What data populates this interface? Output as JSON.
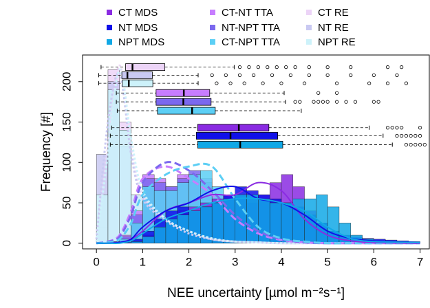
{
  "chart_data": {
    "type": "histogram",
    "xlabel": "NEE uncertainty [µmol m⁻²s⁻¹]",
    "ylabel": "Frequency [#]",
    "xlim": [
      -0.3,
      7.2
    ],
    "ylim": [
      -7,
      233
    ],
    "xticks": [
      0,
      1,
      2,
      3,
      4,
      5,
      6,
      7
    ],
    "yticks": [
      0,
      50,
      100,
      150,
      200
    ],
    "bins": [
      0,
      0.25,
      0.5,
      0.75,
      1,
      1.25,
      1.5,
      1.75,
      2,
      2.25,
      2.5,
      2.75,
      3,
      3.25,
      3.5,
      3.75,
      4,
      4.25,
      4.5,
      4.75,
      5,
      5.25,
      5.5,
      5.75,
      6,
      6.25,
      6.5,
      6.75,
      7
    ],
    "density_x": [
      0,
      0.25,
      0.5,
      0.75,
      1,
      1.5,
      2,
      2.5,
      3,
      3.5,
      4,
      4.5,
      5,
      5.5,
      6,
      7
    ],
    "series": [
      {
        "name": "CT MDS",
        "color": "#8a2be2",
        "line": "solid",
        "values": [
          0,
          0,
          0,
          3,
          10,
          20,
          30,
          40,
          45,
          50,
          55,
          60,
          55,
          50,
          60,
          75,
          85,
          70,
          40,
          25,
          15,
          8,
          5,
          3,
          2,
          1,
          1,
          0
        ],
        "density": [
          0,
          0,
          1,
          5,
          15,
          40,
          50,
          60,
          60,
          75,
          65,
          30,
          10,
          3,
          1,
          0
        ],
        "box": [
          0.33,
          2.19,
          3.08,
          3.73,
          5.9
        ],
        "outliers": [
          6.3,
          6.4,
          6.5,
          6.6,
          7.0
        ]
      },
      {
        "name": "NT MDS",
        "color": "#1010e8",
        "line": "solid",
        "values": [
          0,
          0,
          1,
          5,
          15,
          30,
          40,
          45,
          40,
          45,
          50,
          60,
          70,
          65,
          60,
          55,
          50,
          45,
          35,
          25,
          15,
          10,
          8,
          6,
          5,
          4,
          3,
          2
        ],
        "density": [
          0,
          0,
          1,
          5,
          20,
          40,
          50,
          65,
          70,
          55,
          50,
          35,
          15,
          6,
          3,
          1
        ],
        "box": [
          0.3,
          2.16,
          2.9,
          3.92,
          6.2
        ],
        "outliers": [
          6.5,
          6.6,
          6.7,
          6.8,
          6.9,
          7.0
        ]
      },
      {
        "name": "NPT MDS",
        "color": "#10a8e6",
        "line": "solid",
        "values": [
          0,
          0,
          0,
          2,
          8,
          20,
          30,
          35,
          40,
          45,
          50,
          55,
          60,
          60,
          55,
          50,
          50,
          55,
          55,
          60,
          45,
          25,
          10,
          5,
          3,
          2,
          2,
          1
        ],
        "density": [
          0,
          0,
          0,
          3,
          12,
          30,
          40,
          50,
          55,
          55,
          50,
          40,
          20,
          6,
          2,
          1
        ],
        "box": [
          0.3,
          2.19,
          3.11,
          4.03,
          6.4
        ],
        "outliers": [
          6.7,
          6.8,
          6.9,
          7.0,
          7.1
        ]
      },
      {
        "name": "CT-NT TTA",
        "color": "#c77dff",
        "line": "dashed",
        "values": [
          0,
          2,
          10,
          40,
          85,
          80,
          70,
          85,
          75,
          80,
          60,
          45,
          30,
          20,
          12,
          8,
          4,
          2,
          1,
          1,
          0,
          0,
          0,
          0,
          0,
          0,
          0,
          0
        ],
        "density": [
          0,
          2,
          10,
          40,
          80,
          95,
          80,
          60,
          30,
          12,
          4,
          1,
          0,
          0,
          0,
          0
        ],
        "box": [
          0.43,
          1.29,
          1.89,
          2.45,
          4.06
        ],
        "outliers": [
          4.8,
          5.2
        ]
      },
      {
        "name": "NT-NPT TTA",
        "color": "#7b68ee",
        "line": "dashed",
        "values": [
          0,
          2,
          8,
          35,
          80,
          75,
          70,
          80,
          90,
          75,
          55,
          40,
          28,
          18,
          10,
          6,
          3,
          2,
          1,
          0,
          0,
          0,
          0,
          0,
          0,
          0,
          0,
          0
        ],
        "density": [
          0,
          2,
          8,
          35,
          75,
          100,
          90,
          65,
          35,
          15,
          5,
          1,
          0,
          0,
          0,
          0
        ],
        "box": [
          0.43,
          1.29,
          1.88,
          2.48,
          4.09
        ],
        "outliers": [
          4.3,
          4.4,
          4.7,
          4.8,
          4.9,
          5.0,
          5.2,
          5.4,
          5.6,
          6.0,
          6.1
        ]
      },
      {
        "name": "CT-NPT TTA",
        "color": "#5ccff5",
        "line": "dashed",
        "values": [
          0,
          1,
          5,
          25,
          70,
          65,
          65,
          75,
          85,
          90,
          70,
          55,
          40,
          25,
          15,
          9,
          5,
          3,
          1,
          0,
          0,
          0,
          0,
          0,
          0,
          0,
          0,
          0
        ],
        "density": [
          0,
          1,
          5,
          25,
          60,
          85,
          95,
          95,
          55,
          20,
          6,
          2,
          0,
          0,
          0,
          0
        ],
        "box": [
          0.45,
          1.32,
          2.07,
          2.57,
          4.43
        ],
        "outliers": []
      },
      {
        "name": "CT RE",
        "color": "#ecd4f7",
        "line": "dotted",
        "values": [
          20,
          215,
          150,
          60,
          25,
          10,
          5,
          3,
          2,
          1,
          1,
          0,
          0,
          0,
          0,
          0,
          0,
          0,
          0,
          0,
          0,
          0,
          0,
          0,
          0,
          0,
          0,
          0
        ],
        "density": [
          2,
          120,
          220,
          120,
          60,
          30,
          15,
          5,
          2,
          1,
          0,
          0,
          0,
          0,
          0,
          0
        ],
        "box": [
          0.1,
          0.63,
          0.78,
          1.48,
          2.98
        ],
        "outliers": [
          3.1,
          3.3,
          3.5,
          3.7,
          3.9,
          4.1,
          4.3,
          4.6,
          5.0,
          5.5,
          6.3,
          6.6
        ]
      },
      {
        "name": "NT RE",
        "color": "#c9c9f2",
        "line": "dotted",
        "values": [
          110,
          200,
          120,
          50,
          20,
          8,
          4,
          2,
          1,
          1,
          0,
          0,
          0,
          0,
          0,
          0,
          0,
          0,
          0,
          0,
          0,
          0,
          0,
          0,
          0,
          0,
          0,
          0
        ],
        "density": [
          5,
          150,
          210,
          110,
          55,
          28,
          12,
          5,
          2,
          1,
          0,
          0,
          0,
          0,
          0,
          0
        ],
        "box": [
          0.05,
          0.55,
          0.67,
          1.21,
          2.2
        ],
        "outliers": [
          2.5,
          2.8,
          3.1,
          3.4,
          3.8,
          4.2,
          4.6,
          5.0,
          5.5,
          6.0,
          6.5
        ]
      },
      {
        "name": "NPT RE",
        "color": "#cdf2fa",
        "line": "dotted",
        "values": [
          60,
          190,
          140,
          60,
          25,
          10,
          5,
          3,
          1,
          1,
          0,
          0,
          0,
          0,
          0,
          0,
          0,
          0,
          0,
          0,
          0,
          0,
          0,
          0,
          0,
          0,
          0,
          0
        ],
        "density": [
          2,
          110,
          215,
          130,
          65,
          30,
          15,
          6,
          2,
          1,
          0,
          0,
          0,
          0,
          0,
          0
        ],
        "box": [
          0.05,
          0.56,
          0.7,
          1.22,
          2.2
        ],
        "outliers": [
          2.6,
          2.9,
          3.2,
          3.6,
          4.0,
          4.5,
          5.2,
          5.9,
          6.3,
          6.7
        ]
      }
    ]
  }
}
